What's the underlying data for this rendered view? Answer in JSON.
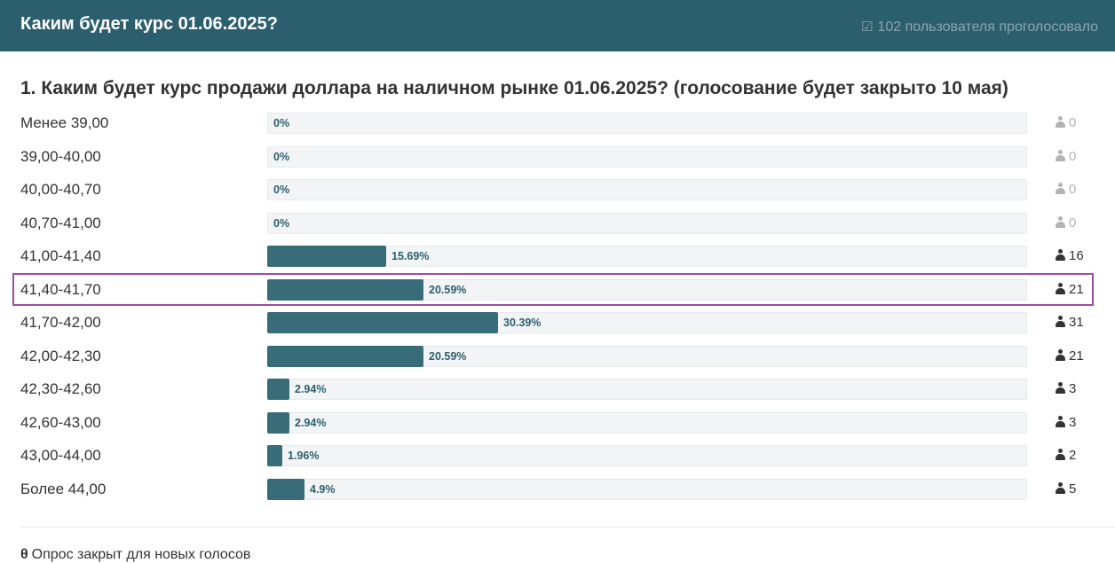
{
  "header": {
    "title": "Каким будет курс 01.06.2025?",
    "votes_text": "102 пользователя проголосовало",
    "votes_icon": "check-square-icon"
  },
  "question": {
    "title": "1. Каким будет курс продажи доллара на наличном рынке 01.06.2025? (голосование будет закрыто 10 мая)"
  },
  "options": [
    {
      "label": "Менее 39,00",
      "percent_text": "0%",
      "percent": 0,
      "count": "0"
    },
    {
      "label": "39,00-40,00",
      "percent_text": "0%",
      "percent": 0,
      "count": "0"
    },
    {
      "label": "40,00-40,70",
      "percent_text": "0%",
      "percent": 0,
      "count": "0"
    },
    {
      "label": "40,70-41,00",
      "percent_text": "0%",
      "percent": 0,
      "count": "0"
    },
    {
      "label": "41,00-41,40",
      "percent_text": "15.69%",
      "percent": 15.69,
      "count": "16"
    },
    {
      "label": "41,40-41,70",
      "percent_text": "20.59%",
      "percent": 20.59,
      "count": "21"
    },
    {
      "label": "41,70-42,00",
      "percent_text": "30.39%",
      "percent": 30.39,
      "count": "31"
    },
    {
      "label": "42,00-42,30",
      "percent_text": "20.59%",
      "percent": 20.59,
      "count": "21"
    },
    {
      "label": "42,30-42,60",
      "percent_text": "2.94%",
      "percent": 2.94,
      "count": "3"
    },
    {
      "label": "42,60-43,00",
      "percent_text": "2.94%",
      "percent": 2.94,
      "count": "3"
    },
    {
      "label": "43,00-44,00",
      "percent_text": "1.96%",
      "percent": 1.96,
      "count": "2"
    },
    {
      "label": "Более 44,00",
      "percent_text": "4.9%",
      "percent": 4.9,
      "count": "5"
    }
  ],
  "highlighted_option": "41,40-41,70",
  "footer": {
    "note": "Опрос закрыт для новых голосов",
    "icon": "lock-icon"
  },
  "colors": {
    "header_bg": "#2c5f6e",
    "bar_fill": "#386c79",
    "bar_track": "#f2f4f5",
    "highlight_border": "#9b4f9e",
    "zero_count": "#b3b3b3"
  }
}
